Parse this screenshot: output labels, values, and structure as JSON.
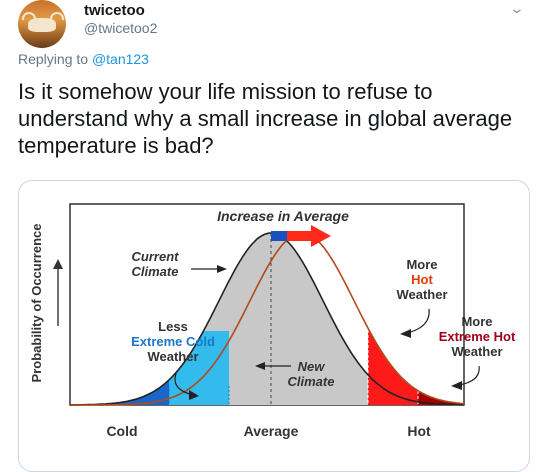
{
  "tweet": {
    "display_name": "twicetoo",
    "handle": "@twicetoo2",
    "reply_prefix": "Replying to",
    "reply_to": "@tan123",
    "text": "Is it somehow your life mission to refuse to understand why a small increase in global average temperature is bad?"
  },
  "figure": {
    "top_label": "Increase in Average",
    "y_axis_label": "Probability of Occurrence",
    "x_labels": [
      "Cold",
      "Average",
      "Hot"
    ],
    "current_climate": [
      "Current",
      "Climate"
    ],
    "new_climate": [
      "New",
      "Climate"
    ],
    "less_cold": [
      "Less",
      "Extreme Cold",
      "Weather"
    ],
    "more_hot": [
      "More",
      "Hot",
      "Weather"
    ],
    "more_extreme_hot": [
      "More",
      "Extreme Hot",
      "Weather"
    ],
    "colors": {
      "current_fill": "#c8c8c8",
      "new_curve": "#b34a1a",
      "cold_extreme": "#1a66c9",
      "cold_light": "#33bbee",
      "hot": "#ff1a1a",
      "hot_extreme": "#a00000",
      "blue_text": "#1a78c8",
      "red_text": "#e03b00",
      "dark_red_text": "#a0001a"
    }
  }
}
